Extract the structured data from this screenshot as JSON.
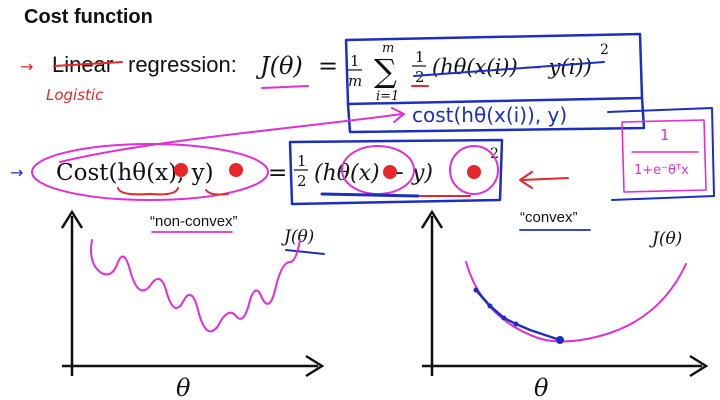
{
  "slide": {
    "title": "Cost function",
    "line1": {
      "prefix": "Linear",
      "rest": "regression:",
      "lhs": "J(θ)",
      "eq": "=",
      "frac_num": "1",
      "frac_den": "m",
      "sum_top": "m",
      "sum_bottom": "i=1",
      "half_num": "1",
      "half_den": "2",
      "inner": "(hθ(x(i)) − y(i))",
      "power": "2"
    },
    "line2": {
      "lhs": "Cost(hθ(x), y)",
      "eq": "=",
      "half_num": "1",
      "half_den": "2",
      "inner": "(hθ(x) − y)",
      "power": "2"
    },
    "plots": {
      "left_label": "“non-convex”",
      "right_label": "“convex”",
      "left_ylabel": "J(θ)",
      "right_ylabel": "J(θ)",
      "left_xlabel": "θ",
      "right_xlabel": "θ"
    },
    "handwriting": {
      "logistic": "Logistic",
      "cost_note": "cost(hθ(x(i)), y)",
      "sigmoid_num": "1",
      "sigmoid_den": "1+e⁻θᵀx"
    },
    "colors": {
      "magenta_ink": "#e02fd3",
      "blue_ink": "#1c2fc0",
      "red_ink": "#e5262a"
    }
  }
}
